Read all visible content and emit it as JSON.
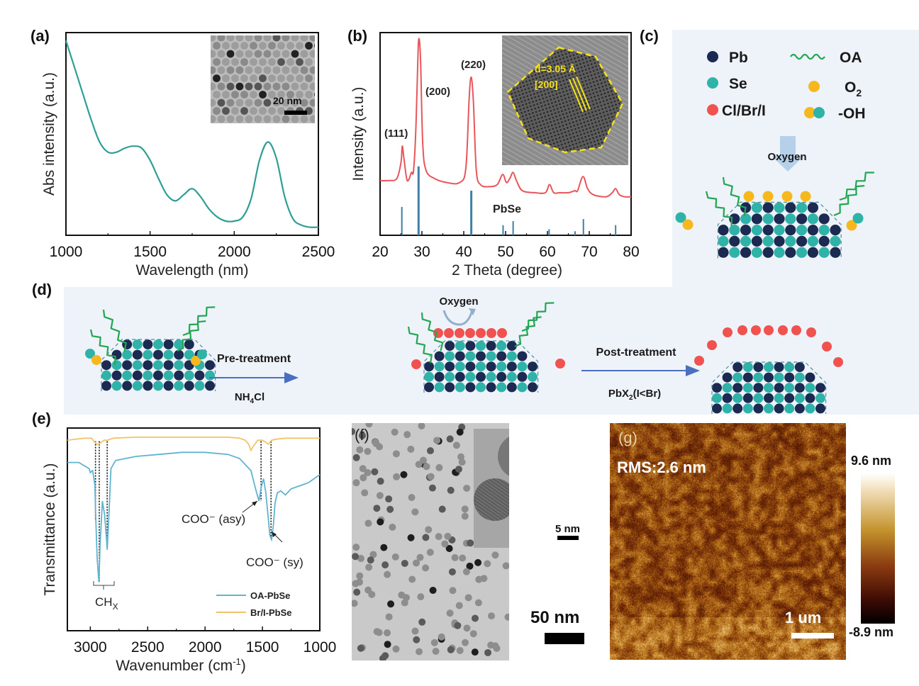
{
  "figure": {
    "panels": {
      "a": "(a)",
      "b": "(b)",
      "c": "(c)",
      "d": "(d)",
      "e": "(e)",
      "f": "(f)",
      "g": "(g)"
    }
  },
  "colors": {
    "abs_line": "#2f9e95",
    "xrd_line": "#e8555a",
    "ref_bars": "#3f7fa5",
    "pb": "#1c2a52",
    "se": "#2fb3a8",
    "halide": "#f0524f",
    "oxygen": "#f6b81c",
    "ligand": "#22a652",
    "ftir_oa": "#5fb4cf",
    "ftir_brl": "#f2c46a",
    "panel_bg": "#eef2f9"
  },
  "chart_data": [
    {
      "id": "a",
      "type": "line",
      "title": "",
      "xlabel": "Wavelength (nm)",
      "ylabel": "Abs intensity (a.u.)",
      "xlim": [
        1000,
        2500
      ],
      "ylim": [
        0,
        1
      ],
      "xticks": [
        1000,
        1500,
        2000,
        2500
      ],
      "grid": false,
      "inset": {
        "caption": "TEM inset",
        "scale_bar": "20 nm"
      },
      "series": [
        {
          "name": "Absorption",
          "x": [
            1000,
            1050,
            1100,
            1150,
            1200,
            1250,
            1300,
            1350,
            1400,
            1450,
            1500,
            1550,
            1600,
            1650,
            1700,
            1750,
            1800,
            1850,
            1900,
            1950,
            2000,
            2050,
            2100,
            2150,
            2200,
            2250,
            2300,
            2350,
            2400,
            2450,
            2500
          ],
          "y": [
            0.96,
            0.83,
            0.7,
            0.57,
            0.46,
            0.41,
            0.41,
            0.43,
            0.44,
            0.43,
            0.37,
            0.28,
            0.2,
            0.17,
            0.2,
            0.23,
            0.19,
            0.13,
            0.09,
            0.07,
            0.07,
            0.09,
            0.18,
            0.37,
            0.46,
            0.38,
            0.19,
            0.08,
            0.05,
            0.04,
            0.04
          ]
        }
      ]
    },
    {
      "id": "b",
      "type": "line",
      "title": "",
      "xlabel": "2 Theta (degree)",
      "ylabel": "Intensity (a.u.)",
      "xlim": [
        20,
        80
      ],
      "ylim": [
        0,
        1
      ],
      "xticks": [
        20,
        30,
        40,
        50,
        60,
        70,
        80
      ],
      "grid": false,
      "annotations": [
        "(111)",
        "(200)",
        "(220)",
        "PbSe"
      ],
      "inset": {
        "d_spacing": "d=3.05 Å",
        "plane": "[200]"
      },
      "series": [
        {
          "name": "XRD",
          "x": [
            20,
            22,
            24,
            25,
            25.3,
            25.7,
            26.5,
            27.5,
            28,
            28.6,
            29.1,
            29.4,
            29.7,
            30.2,
            31,
            33,
            36,
            39,
            40.5,
            41.3,
            41.8,
            42.3,
            43,
            44,
            46,
            48,
            49.3,
            50.2,
            51,
            51.8,
            52.6,
            54,
            57,
            59.5,
            60.5,
            61.5,
            63,
            65,
            66.5,
            67.2,
            68.5,
            69.6,
            71,
            74,
            75.5,
            76.3,
            77.2,
            78.5,
            80
          ],
          "y": [
            0.27,
            0.27,
            0.28,
            0.36,
            0.44,
            0.38,
            0.27,
            0.31,
            0.32,
            0.55,
            0.92,
            0.96,
            0.85,
            0.45,
            0.32,
            0.28,
            0.26,
            0.26,
            0.33,
            0.68,
            0.78,
            0.66,
            0.32,
            0.25,
            0.24,
            0.25,
            0.3,
            0.26,
            0.28,
            0.31,
            0.27,
            0.22,
            0.21,
            0.21,
            0.25,
            0.21,
            0.21,
            0.21,
            0.22,
            0.22,
            0.29,
            0.23,
            0.2,
            0.19,
            0.21,
            0.23,
            0.2,
            0.19,
            0.19
          ]
        }
      ],
      "reference": {
        "name": "PbSe",
        "x": [
          25.2,
          29.2,
          41.8,
          49.4,
          51.8,
          60.4,
          66.6,
          68.6,
          76.3
        ],
        "y": [
          0.14,
          0.34,
          0.22,
          0.05,
          0.07,
          0.03,
          0.02,
          0.08,
          0.05
        ]
      }
    },
    {
      "id": "e",
      "type": "line",
      "title": "",
      "xlabel": "Wavenumber (cm⁻¹)",
      "ylabel": "Transmittance (a.u.)",
      "xlim": [
        3200,
        1000
      ],
      "ylim": [
        0,
        1
      ],
      "xticks": [
        3000,
        2500,
        2000,
        1500,
        1000
      ],
      "grid": false,
      "legend": "bottom-right",
      "annotations": [
        "COO⁻ (asy)",
        "COO⁻ (sy)",
        "CHX"
      ],
      "series": [
        {
          "name": "OA-PbSe",
          "x": [
            3200,
            3100,
            3010,
            3000,
            2980,
            2960,
            2952,
            2940,
            2925,
            2915,
            2895,
            2875,
            2860,
            2853,
            2840,
            2820,
            2780,
            2600,
            2400,
            2200,
            2000,
            1800,
            1700,
            1650,
            1600,
            1560,
            1530,
            1510,
            1490,
            1470,
            1450,
            1435,
            1420,
            1405,
            1390,
            1370,
            1340,
            1300,
            1250,
            1200,
            1150,
            1100,
            1050,
            1000
          ],
          "y": [
            0.83,
            0.83,
            0.8,
            0.78,
            0.79,
            0.72,
            0.55,
            0.35,
            0.24,
            0.42,
            0.64,
            0.57,
            0.46,
            0.4,
            0.55,
            0.8,
            0.84,
            0.86,
            0.87,
            0.88,
            0.88,
            0.87,
            0.85,
            0.82,
            0.79,
            0.7,
            0.64,
            0.71,
            0.75,
            0.68,
            0.56,
            0.47,
            0.45,
            0.52,
            0.63,
            0.68,
            0.69,
            0.67,
            0.7,
            0.71,
            0.72,
            0.73,
            0.75,
            0.77
          ]
        },
        {
          "name": "Br/I-PbSe",
          "x": [
            3200,
            3050,
            2990,
            2960,
            2945,
            2925,
            2905,
            2880,
            2850,
            2800,
            2600,
            2300,
            2000,
            1800,
            1700,
            1650,
            1620,
            1600,
            1580,
            1540,
            1500,
            1470,
            1450,
            1420,
            1380,
            1300,
            1200,
            1100,
            1000
          ],
          "y": [
            0.94,
            0.95,
            0.95,
            0.93,
            0.92,
            0.92,
            0.93,
            0.94,
            0.94,
            0.95,
            0.955,
            0.955,
            0.955,
            0.955,
            0.95,
            0.94,
            0.92,
            0.89,
            0.91,
            0.94,
            0.94,
            0.93,
            0.92,
            0.94,
            0.945,
            0.95,
            0.95,
            0.95,
            0.95
          ]
        }
      ],
      "markers_cm": [
        2955,
        2922,
        2853,
        1512,
        1425
      ]
    }
  ],
  "panel_c": {
    "legend": [
      {
        "label": "Pb",
        "species": "pb"
      },
      {
        "label": "Se",
        "species": "se"
      },
      {
        "label": "Cl/Br/I",
        "species": "halide"
      },
      {
        "label": "OA",
        "species": "ligand"
      },
      {
        "label": "O",
        "sub": "2",
        "species": "oxygen"
      },
      {
        "label": "-OH",
        "species": "hydroxyl"
      }
    ],
    "arrow_label": "Oxygen",
    "arrow_icon": "down-arrow-icon"
  },
  "panel_d": {
    "step1_top": "Pre-treatment",
    "step1_bottom_pre": "NH",
    "step1_bottom_sub": "4",
    "step1_bottom_post": "Cl",
    "mid_label": "Oxygen",
    "step2_top": "Post-treatment",
    "step2_bottom_pre": "PbX",
    "step2_bottom_sub": "2",
    "step2_bottom_post": "(I<Br)"
  },
  "panel_f": {
    "scale_bar": "50 nm",
    "inset_scale_bar": "5 nm"
  },
  "panel_g": {
    "rms": "RMS:2.6 nm",
    "scale_bar": "1 um",
    "colorbar_max": "9.6 nm",
    "colorbar_min": "-8.9 nm"
  }
}
